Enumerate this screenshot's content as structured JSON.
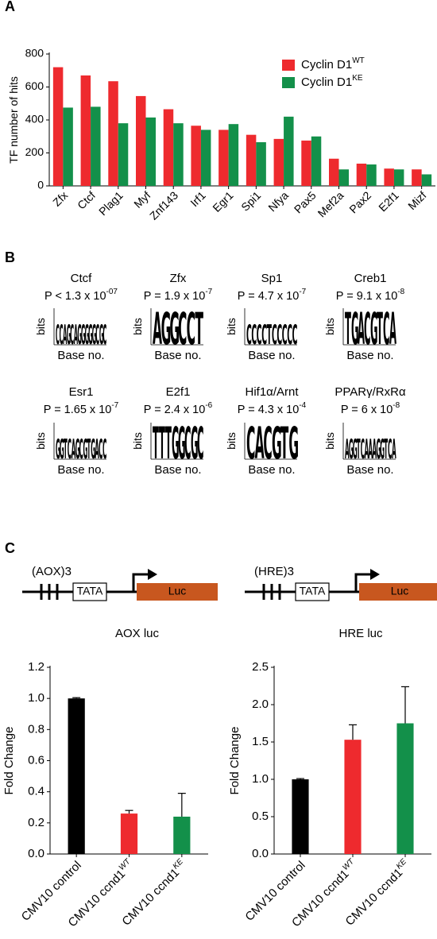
{
  "panel_labels": [
    "A",
    "B",
    "C"
  ],
  "chart_data": [
    {
      "type": "bar",
      "y_label": "TF number of hits",
      "categories": [
        "Zfx",
        "Ctcf",
        "Plag1",
        "Myf",
        "Znf143",
        "Irf1",
        "Egr1",
        "Spi1",
        "Nfya",
        "Pax5",
        "Mef2a",
        "Pax2",
        "E2f1",
        "Mizf"
      ],
      "series": [
        {
          "name": "Cyclin D1",
          "name_superscript": "WT",
          "color": "#ee2a2e",
          "values": [
            720,
            670,
            635,
            545,
            465,
            365,
            340,
            310,
            285,
            275,
            165,
            135,
            105,
            100
          ]
        },
        {
          "name": "Cyclin D1",
          "name_superscript": "KE",
          "color": "#13904a",
          "values": [
            475,
            480,
            380,
            415,
            380,
            340,
            375,
            265,
            420,
            300,
            100,
            130,
            100,
            70
          ]
        }
      ],
      "ylim": [
        0,
        800
      ],
      "yticks": [
        0,
        200,
        400,
        600,
        800
      ],
      "grid": false
    },
    {
      "type": "bar",
      "title": "AOX luc",
      "y_label": "Fold Change",
      "categories": [
        "CMV10 control",
        "CMV10 ccnd1",
        "CMV10 ccnd1"
      ],
      "category_superscripts": [
        null,
        "WT",
        "KE"
      ],
      "values": [
        1.0,
        0.26,
        0.24
      ],
      "errors": [
        0.005,
        0.02,
        0.15
      ],
      "colors": [
        "#000000",
        "#ee2a2e",
        "#13904a"
      ],
      "ylim": [
        0,
        1.2
      ],
      "yticks": [
        {
          "value": 0,
          "label": "0.0"
        },
        0.2,
        0.4,
        0.6,
        0.8,
        {
          "value": 1,
          "label": "1.0"
        },
        1.2
      ],
      "grid": false
    },
    {
      "type": "bar",
      "title": "HRE luc",
      "y_label": "Fold Change",
      "categories": [
        "CMV10 control",
        "CMV10 ccnd1",
        "CMV10 ccnd1"
      ],
      "category_superscripts": [
        null,
        "WT",
        "KE"
      ],
      "values": [
        1.0,
        1.53,
        1.75
      ],
      "errors": [
        0.01,
        0.2,
        0.49
      ],
      "colors": [
        "#000000",
        "#ee2a2e",
        "#13904a"
      ],
      "ylim": [
        0,
        2.5
      ],
      "yticks": [
        {
          "value": 0,
          "label": "0.0"
        },
        0.5,
        {
          "value": 1,
          "label": "1.0"
        },
        1.5,
        {
          "value": 2,
          "label": "2.0"
        },
        2.5
      ],
      "grid": false
    }
  ],
  "motif_axis": {
    "y_label": "bits",
    "x_label": "Base no."
  },
  "motifs": [
    {
      "name": "Ctcf",
      "p_value": "P < 1.3 x 10",
      "p_exponent": "-07",
      "logo": [
        "C",
        "C",
        "A",
        "G",
        "C",
        "A",
        "G",
        "G",
        "G",
        "G",
        "G",
        "C",
        "G",
        "C"
      ]
    },
    {
      "name": "Zfx",
      "p_value": "P = 1.9 x 10",
      "p_exponent": "-7",
      "logo": [
        "A",
        "G",
        "G",
        "C",
        "C",
        "T"
      ]
    },
    {
      "name": "Sp1",
      "p_value": "P = 4.7 x 10",
      "p_exponent": "-7",
      "logo": [
        "C",
        "C",
        "C",
        "C",
        "T",
        "C",
        "C",
        "C",
        "C",
        "C"
      ]
    },
    {
      "name": "Creb1",
      "p_value": "P = 9.1 x 10",
      "p_exponent": "-8",
      "logo": [
        "T",
        "G",
        "A",
        "C",
        "G",
        "T",
        "C",
        "A"
      ]
    },
    {
      "name": "Esr1",
      "p_value": "P = 1.65 x 10",
      "p_exponent": "-7",
      "logo": [
        "G",
        "G",
        "T",
        "C",
        "A",
        "G",
        "C",
        "G",
        "T",
        "G",
        "A",
        "C",
        "C"
      ]
    },
    {
      "name": "E2f1",
      "p_value": "P = 2.4 x 10",
      "p_exponent": "-6",
      "logo": [
        "T",
        "T",
        "T",
        "G",
        "G",
        "C",
        "G",
        "C"
      ]
    },
    {
      "name": "Hif1α/Arnt",
      "p_value": "P = 4.3 x 10",
      "p_exponent": "-4",
      "logo": [
        "C",
        "A",
        "C",
        "G",
        "T",
        "G"
      ]
    },
    {
      "name": "PPARγ/RxRα",
      "p_value": "P = 6 x 10",
      "p_exponent": "-8",
      "logo": [
        "A",
        "G",
        "G",
        "T",
        "C",
        "A",
        "A",
        "A",
        "G",
        "G",
        "T",
        "C",
        "A"
      ]
    }
  ],
  "constructs": [
    {
      "label": "(AOX)3",
      "promoter": "TATA",
      "reporter": "Luc"
    },
    {
      "label": "(HRE)3",
      "promoter": "TATA",
      "reporter": "Luc"
    }
  ]
}
